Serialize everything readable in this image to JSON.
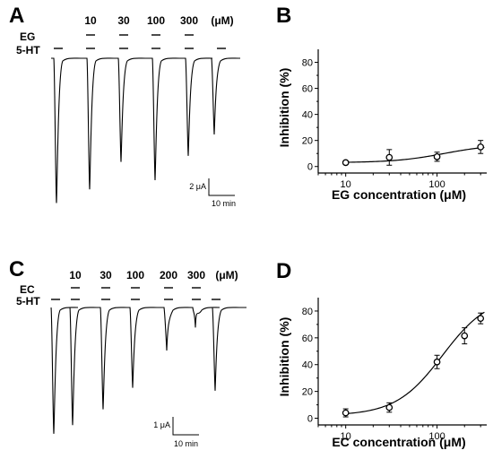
{
  "panels": {
    "A": {
      "letter": "A",
      "concentrations": [
        "10",
        "30",
        "100",
        "300"
      ],
      "unit": "(μM)",
      "drug_label": "EG",
      "agonist_label": "5-HT",
      "scale_current": "2 μA",
      "scale_time": "10 min",
      "trace_peaks": [
        0.95,
        0.86,
        0.68,
        0.8,
        0.64,
        0.5
      ]
    },
    "C": {
      "letter": "C",
      "concentrations": [
        "10",
        "30",
        "100",
        "200",
        "300"
      ],
      "unit": "(μM)",
      "drug_label": "EC",
      "agonist_label": "5-HT",
      "scale_current": "1 μA",
      "scale_time": "10 min",
      "trace_peaks": [
        0.88,
        0.82,
        0.71,
        0.56,
        0.3,
        0.14,
        0.58
      ]
    },
    "B": {
      "letter": "B"
    },
    "D": {
      "letter": "D"
    }
  },
  "chart_data": [
    {
      "panel": "B",
      "type": "scatter",
      "xlabel": "EG concentration (μM)",
      "ylabel": "Inhibition (%)",
      "xscale": "log",
      "xlim": [
        5,
        350
      ],
      "ylim": [
        -5,
        90
      ],
      "xticks": [
        10,
        100
      ],
      "yticks": [
        0,
        20,
        40,
        60,
        80
      ],
      "points": [
        {
          "x": 10,
          "y": 3,
          "err": 1
        },
        {
          "x": 30,
          "y": 7,
          "err": 6
        },
        {
          "x": 100,
          "y": 7.5,
          "err": 3.5
        },
        {
          "x": 300,
          "y": 15,
          "err": 5
        }
      ],
      "fit": {
        "bottom": 3,
        "top": 17,
        "ec50": 120,
        "hill": 1.6
      }
    },
    {
      "panel": "D",
      "type": "scatter",
      "xlabel": "EC concentration (μM)",
      "ylabel": "Inhibition (%)",
      "xscale": "log",
      "xlim": [
        5,
        350
      ],
      "ylim": [
        -5,
        90
      ],
      "xticks": [
        10,
        100
      ],
      "yticks": [
        0,
        20,
        40,
        60,
        80
      ],
      "points": [
        {
          "x": 10,
          "y": 4,
          "err": 3
        },
        {
          "x": 30,
          "y": 8,
          "err": 3.5
        },
        {
          "x": 100,
          "y": 42,
          "err": 5
        },
        {
          "x": 200,
          "y": 61.5,
          "err": 6
        },
        {
          "x": 300,
          "y": 74.5,
          "err": 4
        }
      ],
      "fit": {
        "bottom": 2,
        "top": 92,
        "ec50": 115,
        "hill": 1.7
      }
    }
  ]
}
